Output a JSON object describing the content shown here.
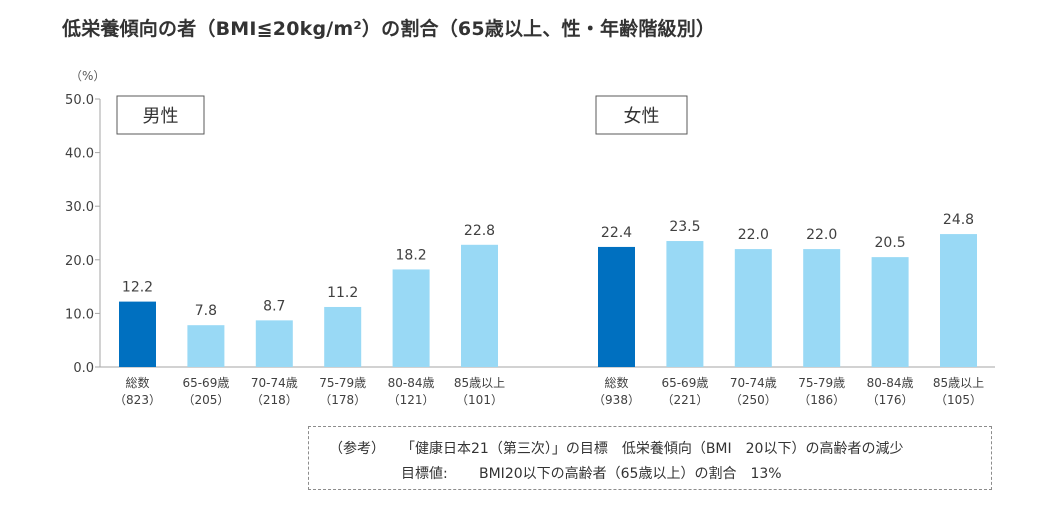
{
  "chart_data": {
    "type": "bar",
    "title": "低栄養傾向の者（BMI≦20kg/m²）の割合（65歳以上、性・年齢階級別）",
    "unit_label": "（%）",
    "ylim": [
      0,
      50
    ],
    "yticks": [
      "0.0",
      "10.0",
      "20.0",
      "30.0",
      "40.0",
      "50.0"
    ],
    "grid": false,
    "colors": {
      "total": "#0070c0",
      "age": "#99d9f5",
      "axis": "#a6a6a6"
    },
    "groups": [
      {
        "name": "男性",
        "categories": [
          {
            "label": "総数",
            "n": "（823）",
            "value": 12.2,
            "display": "12.2",
            "kind": "total"
          },
          {
            "label": "65-69歳",
            "n": "（205）",
            "value": 7.8,
            "display": "7.8",
            "kind": "age"
          },
          {
            "label": "70-74歳",
            "n": "（218）",
            "value": 8.7,
            "display": "8.7",
            "kind": "age"
          },
          {
            "label": "75-79歳",
            "n": "（178）",
            "value": 11.2,
            "display": "11.2",
            "kind": "age"
          },
          {
            "label": "80-84歳",
            "n": "（121）",
            "value": 18.2,
            "display": "18.2",
            "kind": "age"
          },
          {
            "label": "85歳以上",
            "n": "（101）",
            "value": 22.8,
            "display": "22.8",
            "kind": "age"
          }
        ]
      },
      {
        "name": "女性",
        "categories": [
          {
            "label": "総数",
            "n": "（938）",
            "value": 22.4,
            "display": "22.4",
            "kind": "total"
          },
          {
            "label": "65-69歳",
            "n": "（221）",
            "value": 23.5,
            "display": "23.5",
            "kind": "age"
          },
          {
            "label": "70-74歳",
            "n": "（250）",
            "value": 22.0,
            "display": "22.0",
            "kind": "age"
          },
          {
            "label": "75-79歳",
            "n": "（186）",
            "value": 22.0,
            "display": "22.0",
            "kind": "age"
          },
          {
            "label": "80-84歳",
            "n": "（176）",
            "value": 20.5,
            "display": "20.5",
            "kind": "age"
          },
          {
            "label": "85歳以上",
            "n": "（105）",
            "value": 24.8,
            "display": "24.8",
            "kind": "age"
          }
        ]
      }
    ]
  },
  "note": {
    "line1_label": "（参考）",
    "line1_text": "「健康日本21（第三次）」の目標　低栄養傾向（BMI　20以下）の高齢者の減少",
    "line2_label": "目標値:",
    "line2_text": "BMI20以下の高齢者（65歳以上）の割合　13%"
  }
}
